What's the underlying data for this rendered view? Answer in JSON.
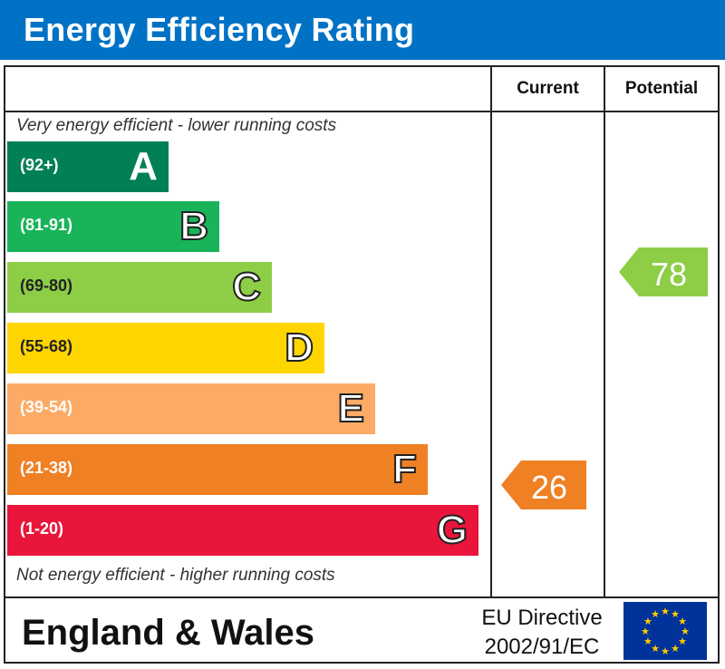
{
  "header": {
    "title": "Energy Efficiency Rating"
  },
  "columns": {
    "current": "Current",
    "potential": "Potential"
  },
  "captions": {
    "top": "Very energy efficient - lower running costs",
    "bottom": "Not energy efficient - higher running costs"
  },
  "footer": {
    "region": "England & Wales",
    "directive_line1": "EU Directive",
    "directive_line2": "2002/91/EC"
  },
  "colors": {
    "title_bar": "#0072c6",
    "A": "#008054",
    "B": "#19b459",
    "C": "#8dce46",
    "D": "#ffd500",
    "E": "#fcaa65",
    "F": "#ef8023",
    "G": "#e9153b",
    "eu_flag": "#003399",
    "eu_stars": "#ffcc00"
  },
  "chart_data": {
    "type": "bar",
    "categories": [
      "A",
      "B",
      "C",
      "D",
      "E",
      "F",
      "G"
    ],
    "ranges": [
      "(92+)",
      "(81-91)",
      "(69-80)",
      "(55-68)",
      "(39-54)",
      "(21-38)",
      "(1-20)"
    ],
    "current": {
      "value": "26",
      "band": "F"
    },
    "potential": {
      "value": "78",
      "band": "C"
    }
  }
}
